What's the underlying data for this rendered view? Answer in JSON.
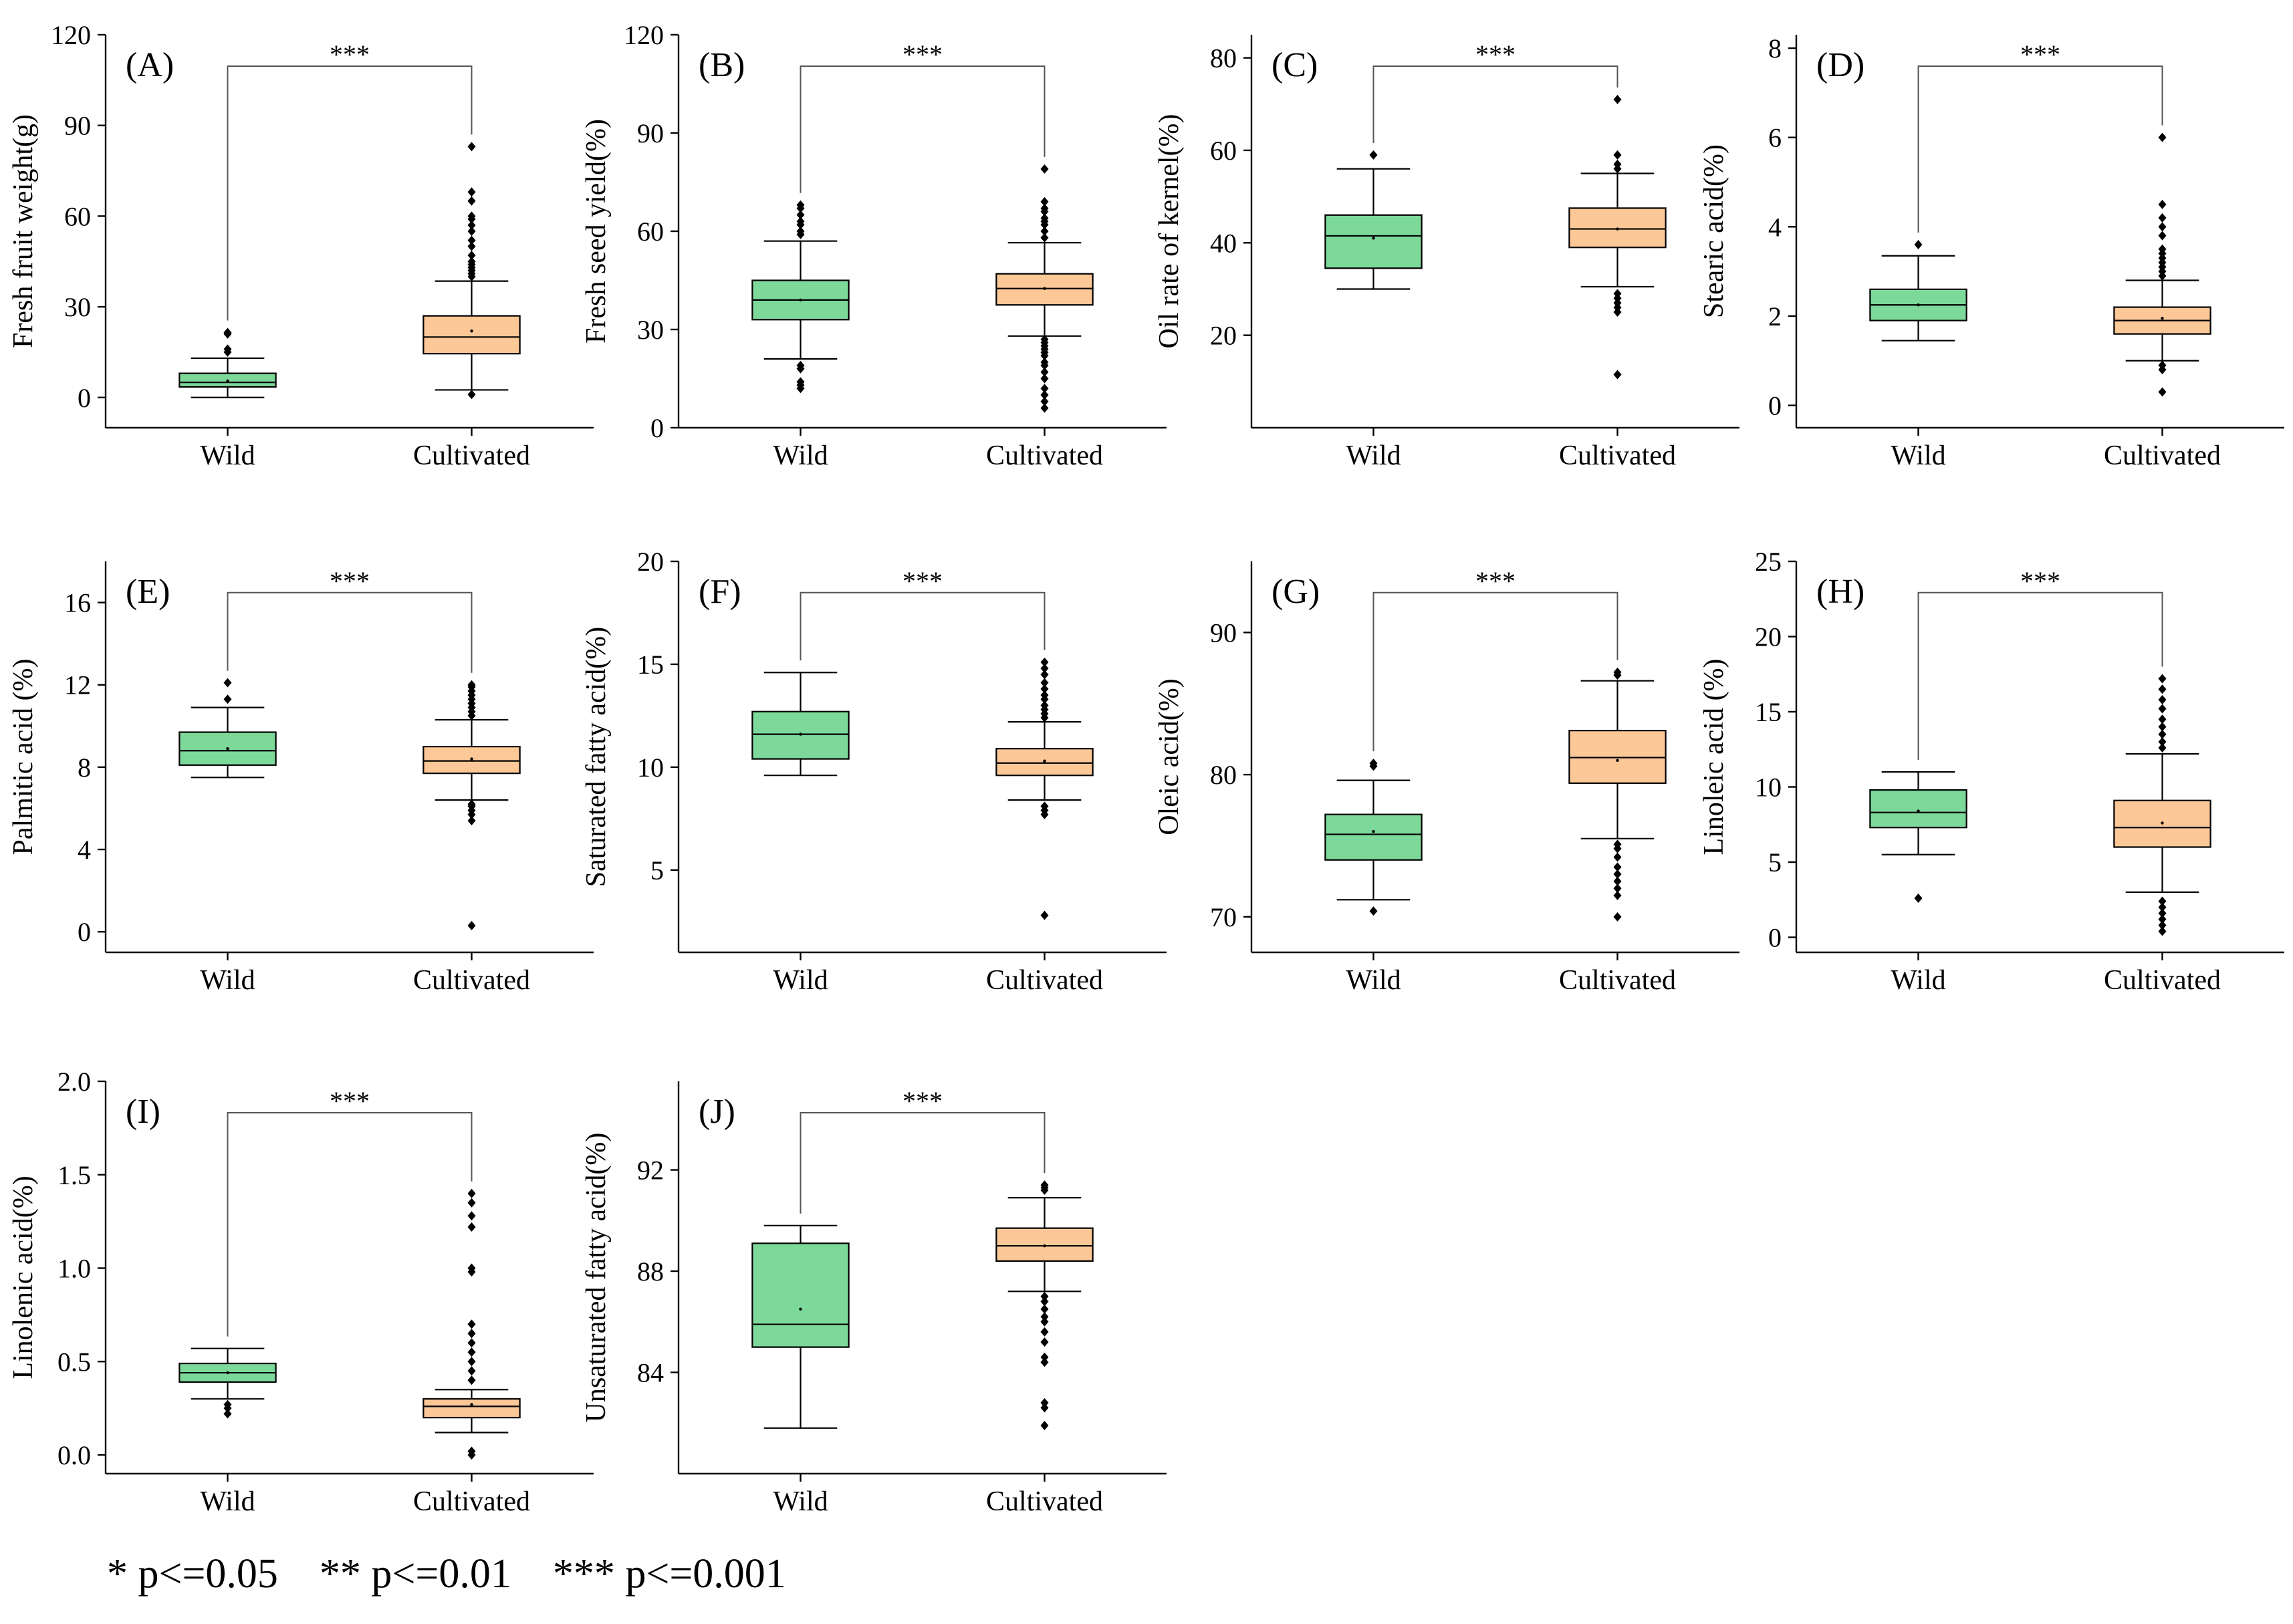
{
  "colors": {
    "wild_fill": "#7dd99a",
    "cultivated_fill": "#fcc898",
    "stroke": "#000000",
    "bracket": "#555555"
  },
  "footnote": "* p<=0.05    ** p<=0.01    *** p<=0.001",
  "chart_data": [
    {
      "type": "box",
      "panel": "(A)",
      "ylabel": "Fresh fruit weight(g)",
      "categories": [
        "Wild",
        "Cultivated"
      ],
      "ylim": [
        -10,
        120
      ],
      "yticks": [
        0,
        30,
        60,
        90,
        120
      ],
      "significance": "***",
      "boxes": [
        {
          "name": "Wild",
          "whisker_low": 0,
          "q1": 3.5,
          "median": 5,
          "q3": 8,
          "whisker_high": 13,
          "mean": 5.5,
          "outliers": [
            15,
            16,
            21,
            21.5
          ]
        },
        {
          "name": "Cultivated",
          "whisker_low": 2.5,
          "q1": 14.5,
          "median": 20,
          "q3": 27,
          "whisker_high": 38.5,
          "mean": 22,
          "outliers": [
            1,
            40,
            41,
            42,
            43,
            44,
            45,
            47,
            50,
            52,
            55,
            57,
            59,
            60,
            65,
            68,
            83
          ]
        }
      ]
    },
    {
      "type": "box",
      "panel": "(B)",
      "ylabel": "Fresh seed yield(%)",
      "categories": [
        "Wild",
        "Cultivated"
      ],
      "ylim": [
        0,
        120
      ],
      "yticks": [
        0,
        30,
        60,
        90,
        120
      ],
      "significance": "***",
      "boxes": [
        {
          "name": "Wild",
          "whisker_low": 21,
          "q1": 33,
          "median": 39,
          "q3": 45,
          "whisker_high": 57,
          "mean": 39,
          "outliers": [
            12,
            13,
            14,
            18,
            19,
            59,
            60,
            62,
            63,
            65,
            67,
            68
          ]
        },
        {
          "name": "Cultivated",
          "whisker_low": 28,
          "q1": 37.5,
          "median": 42.5,
          "q3": 47,
          "whisker_high": 56.5,
          "mean": 42.5,
          "outliers": [
            6,
            8,
            10,
            12,
            15,
            17,
            19,
            20,
            22,
            23,
            24,
            25,
            26,
            27,
            58,
            60,
            62,
            63,
            64,
            66,
            67,
            69,
            79
          ]
        }
      ]
    },
    {
      "type": "box",
      "panel": "(C)",
      "ylabel": "Oil rate of kernel(%)",
      "categories": [
        "Wild",
        "Cultivated"
      ],
      "ylim": [
        0,
        85
      ],
      "yticks": [
        20,
        40,
        60,
        80
      ],
      "significance": "***",
      "boxes": [
        {
          "name": "Wild",
          "whisker_low": 30,
          "q1": 34.5,
          "median": 41.5,
          "q3": 46,
          "whisker_high": 56,
          "mean": 41,
          "outliers": [
            59
          ]
        },
        {
          "name": "Cultivated",
          "whisker_low": 30.5,
          "q1": 39,
          "median": 43,
          "q3": 47.5,
          "whisker_high": 55,
          "mean": 43,
          "outliers": [
            11.5,
            25,
            26,
            27,
            28,
            29,
            56,
            57,
            59,
            71
          ]
        }
      ]
    },
    {
      "type": "box",
      "panel": "(D)",
      "ylabel": "Stearic acid(%)",
      "categories": [
        "Wild",
        "Cultivated"
      ],
      "ylim": [
        -0.5,
        8.3
      ],
      "yticks": [
        0,
        2,
        4,
        6,
        8
      ],
      "significance": "***",
      "boxes": [
        {
          "name": "Wild",
          "whisker_low": 1.45,
          "q1": 1.9,
          "median": 2.25,
          "q3": 2.6,
          "whisker_high": 3.35,
          "mean": 2.25,
          "outliers": [
            3.6
          ]
        },
        {
          "name": "Cultivated",
          "whisker_low": 1.0,
          "q1": 1.6,
          "median": 1.9,
          "q3": 2.2,
          "whisker_high": 2.8,
          "mean": 1.95,
          "outliers": [
            0.3,
            0.8,
            0.9,
            2.9,
            3.0,
            3.1,
            3.2,
            3.3,
            3.4,
            3.5,
            3.8,
            4.0,
            4.2,
            4.5,
            6.0
          ]
        }
      ]
    },
    {
      "type": "box",
      "panel": "(E)",
      "ylabel": "Palmitic acid (%)",
      "categories": [
        "Wild",
        "Cultivated"
      ],
      "ylim": [
        -1,
        18
      ],
      "yticks": [
        0,
        4,
        8,
        12,
        16
      ],
      "significance": "***",
      "boxes": [
        {
          "name": "Wild",
          "whisker_low": 7.5,
          "q1": 8.1,
          "median": 8.8,
          "q3": 9.7,
          "whisker_high": 10.9,
          "mean": 8.9,
          "outliers": [
            11.3,
            12.1
          ]
        },
        {
          "name": "Cultivated",
          "whisker_low": 6.4,
          "q1": 7.7,
          "median": 8.3,
          "q3": 9.0,
          "whisker_high": 10.3,
          "mean": 8.4,
          "outliers": [
            0.3,
            5.4,
            5.7,
            5.9,
            6.1,
            6.2,
            10.5,
            10.7,
            10.9,
            11.1,
            11.3,
            11.5,
            11.7,
            11.9,
            12.0
          ]
        }
      ]
    },
    {
      "type": "box",
      "panel": "(F)",
      "ylabel": "Saturated fatty acid(%)",
      "categories": [
        "Wild",
        "Cultivated"
      ],
      "ylim": [
        1,
        20
      ],
      "yticks": [
        5,
        10,
        15,
        20
      ],
      "significance": "***",
      "boxes": [
        {
          "name": "Wild",
          "whisker_low": 9.6,
          "q1": 10.4,
          "median": 11.6,
          "q3": 12.7,
          "whisker_high": 14.6,
          "mean": 11.6,
          "outliers": []
        },
        {
          "name": "Cultivated",
          "whisker_low": 8.4,
          "q1": 9.6,
          "median": 10.2,
          "q3": 10.9,
          "whisker_high": 12.2,
          "mean": 10.3,
          "outliers": [
            2.8,
            7.7,
            7.9,
            8.1,
            12.4,
            12.6,
            12.8,
            13.0,
            13.3,
            13.5,
            13.8,
            14.1,
            14.5,
            14.8,
            15.1
          ]
        }
      ]
    },
    {
      "type": "box",
      "panel": "(G)",
      "ylabel": "Oleic acid(%)",
      "categories": [
        "Wild",
        "Cultivated"
      ],
      "ylim": [
        67.5,
        95
      ],
      "yticks": [
        70,
        80,
        90
      ],
      "significance": "***",
      "boxes": [
        {
          "name": "Wild",
          "whisker_low": 71.2,
          "q1": 74.0,
          "median": 75.8,
          "q3": 77.2,
          "whisker_high": 79.6,
          "mean": 76.0,
          "outliers": [
            70.4,
            80.6,
            80.8
          ]
        },
        {
          "name": "Cultivated",
          "whisker_low": 75.5,
          "q1": 79.4,
          "median": 81.2,
          "q3": 83.1,
          "whisker_high": 86.6,
          "mean": 81.0,
          "outliers": [
            70.0,
            71.5,
            72.0,
            72.5,
            73.0,
            73.5,
            74.2,
            74.8,
            75.1,
            87.0,
            87.2
          ]
        }
      ]
    },
    {
      "type": "box",
      "panel": "(H)",
      "ylabel": "Linoleic acid (%)",
      "categories": [
        "Wild",
        "Cultivated"
      ],
      "ylim": [
        -1,
        25
      ],
      "yticks": [
        0,
        5,
        10,
        15,
        20,
        25
      ],
      "significance": "***",
      "boxes": [
        {
          "name": "Wild",
          "whisker_low": 5.5,
          "q1": 7.3,
          "median": 8.3,
          "q3": 9.8,
          "whisker_high": 11.0,
          "mean": 8.4,
          "outliers": [
            2.6
          ]
        },
        {
          "name": "Cultivated",
          "whisker_low": 3.0,
          "q1": 6.0,
          "median": 7.3,
          "q3": 9.1,
          "whisker_high": 12.2,
          "mean": 7.6,
          "outliers": [
            0.4,
            0.8,
            1.2,
            1.6,
            2.0,
            2.4,
            12.6,
            13.0,
            13.5,
            14.0,
            14.5,
            15.2,
            15.8,
            16.5,
            17.2
          ]
        }
      ]
    },
    {
      "type": "box",
      "panel": "(I)",
      "ylabel": "Linolenic acid(%)",
      "categories": [
        "Wild",
        "Cultivated"
      ],
      "ylim": [
        -0.1,
        2.0
      ],
      "yticks": [
        0.0,
        0.5,
        1.0,
        1.5,
        2.0
      ],
      "tick_format": "1dp",
      "significance": "***",
      "boxes": [
        {
          "name": "Wild",
          "whisker_low": 0.3,
          "q1": 0.39,
          "median": 0.44,
          "q3": 0.49,
          "whisker_high": 0.57,
          "mean": 0.44,
          "outliers": [
            0.22,
            0.25,
            0.27
          ]
        },
        {
          "name": "Cultivated",
          "whisker_low": 0.12,
          "q1": 0.2,
          "median": 0.26,
          "q3": 0.3,
          "whisker_high": 0.35,
          "mean": 0.27,
          "outliers": [
            0.0,
            0.02,
            0.4,
            0.45,
            0.5,
            0.55,
            0.6,
            0.65,
            0.7,
            0.98,
            1.0,
            1.22,
            1.28,
            1.35,
            1.4
          ]
        }
      ]
    },
    {
      "type": "box",
      "panel": "(J)",
      "ylabel": "Unsaturated fatty acid(%)",
      "categories": [
        "Wild",
        "Cultivated"
      ],
      "ylim": [
        80,
        95.5
      ],
      "yticks": [
        84,
        88,
        92
      ],
      "significance": "***",
      "boxes": [
        {
          "name": "Wild",
          "whisker_low": 81.8,
          "q1": 85.0,
          "median": 85.9,
          "q3": 89.1,
          "whisker_high": 89.8,
          "mean": 86.5,
          "outliers": []
        },
        {
          "name": "Cultivated",
          "whisker_low": 87.2,
          "q1": 88.4,
          "median": 89.0,
          "q3": 89.7,
          "whisker_high": 90.9,
          "mean": 89.0,
          "outliers": [
            81.9,
            82.6,
            82.8,
            84.4,
            84.6,
            85.2,
            85.6,
            86.0,
            86.2,
            86.5,
            86.8,
            87.0,
            91.2,
            91.3,
            91.4
          ]
        }
      ]
    }
  ]
}
